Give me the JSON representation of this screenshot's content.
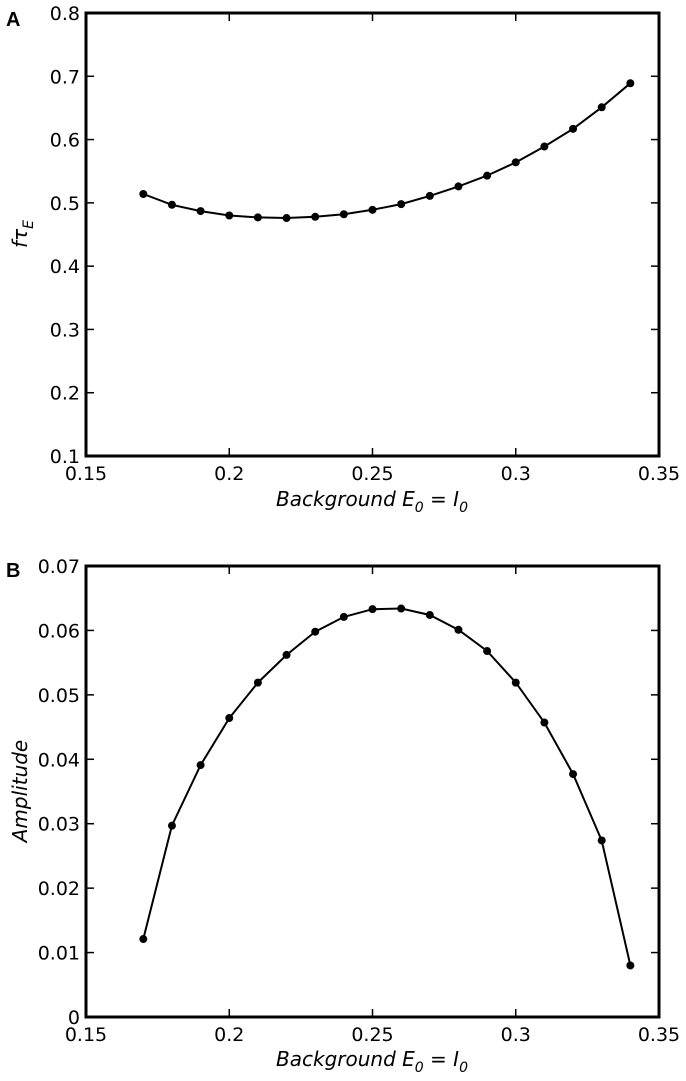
{
  "chart_data": [
    {
      "type": "line",
      "panel_label": "A",
      "x": [
        0.17,
        0.18,
        0.19,
        0.2,
        0.21,
        0.22,
        0.23,
        0.24,
        0.25,
        0.26,
        0.27,
        0.28,
        0.29,
        0.3,
        0.31,
        0.32,
        0.33,
        0.34
      ],
      "series": [
        {
          "values": [
            0.514,
            0.497,
            0.487,
            0.48,
            0.477,
            0.476,
            0.478,
            0.482,
            0.489,
            0.498,
            0.511,
            0.526,
            0.543,
            0.564,
            0.589,
            0.617,
            0.651,
            0.689
          ]
        }
      ],
      "xlim": [
        0.15,
        0.35
      ],
      "ylim": [
        0.1,
        0.8
      ],
      "xticks": [
        "0.15",
        "0.2",
        "0.25",
        "0.3",
        "0.35"
      ],
      "yticks": [
        "0.1",
        "0.2",
        "0.3",
        "0.4",
        "0.5",
        "0.6",
        "0.7",
        "0.8"
      ],
      "xticks_values": [
        0.15,
        0.2,
        0.25,
        0.3,
        0.35
      ],
      "yticks_values": [
        0.1,
        0.2,
        0.3,
        0.4,
        0.5,
        0.6,
        0.7,
        0.8
      ],
      "xlabel": {
        "main": "Background E",
        "sub1": "0",
        "mid": " = I",
        "sub2": "0"
      },
      "ylabel": {
        "main": "fτ",
        "sub": "E"
      },
      "grid": false,
      "markers": "filled-circle",
      "line_color": "#000000"
    },
    {
      "type": "line",
      "panel_label": "B",
      "x": [
        0.17,
        0.18,
        0.19,
        0.2,
        0.21,
        0.22,
        0.23,
        0.24,
        0.25,
        0.26,
        0.27,
        0.28,
        0.29,
        0.3,
        0.31,
        0.32,
        0.33,
        0.34
      ],
      "series": [
        {
          "values": [
            0.0121,
            0.0297,
            0.0391,
            0.0464,
            0.0519,
            0.0562,
            0.0598,
            0.0621,
            0.0633,
            0.0634,
            0.0624,
            0.0601,
            0.0568,
            0.0519,
            0.0457,
            0.0377,
            0.0274,
            0.008
          ]
        }
      ],
      "xlim": [
        0.15,
        0.35
      ],
      "ylim": [
        0,
        0.07
      ],
      "xticks": [
        "0.15",
        "0.2",
        "0.25",
        "0.3",
        "0.35"
      ],
      "yticks": [
        "0",
        "0.01",
        "0.02",
        "0.03",
        "0.04",
        "0.05",
        "0.06",
        "0.07"
      ],
      "xticks_values": [
        0.15,
        0.2,
        0.25,
        0.3,
        0.35
      ],
      "yticks_values": [
        0,
        0.01,
        0.02,
        0.03,
        0.04,
        0.05,
        0.06,
        0.07
      ],
      "xlabel": {
        "main": "Background E",
        "sub1": "0",
        "mid": " = I",
        "sub2": "0"
      },
      "ylabel": {
        "main": "Amplitude",
        "sub": ""
      },
      "grid": false,
      "markers": "filled-circle",
      "line_color": "#000000"
    }
  ]
}
